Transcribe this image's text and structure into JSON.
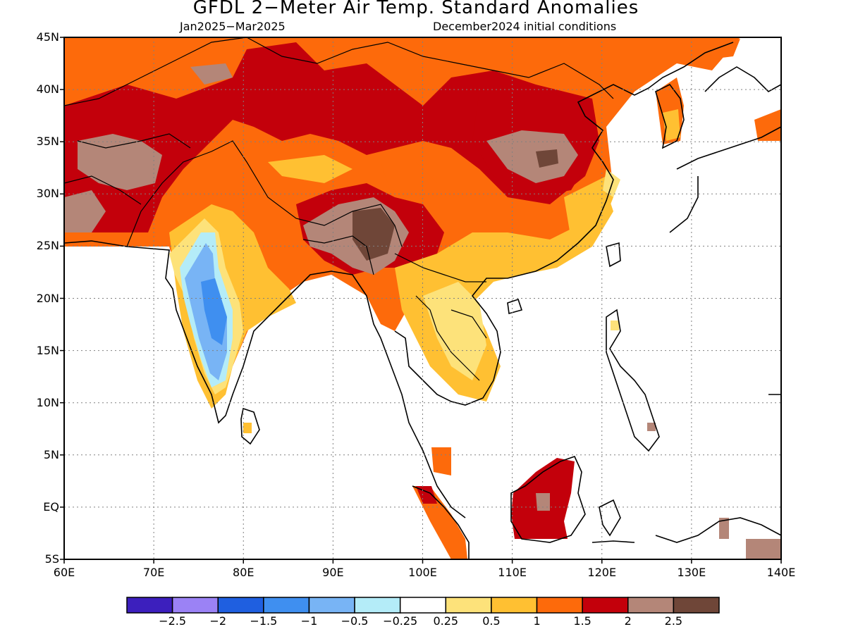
{
  "header": {
    "title": "GFDL 2−Meter Air Temp. Standard Anomalies",
    "period": "Jan2025−Mar2025",
    "init": "December2024 initial conditions"
  },
  "map": {
    "lat_labels": [
      "45N",
      "40N",
      "35N",
      "30N",
      "25N",
      "20N",
      "15N",
      "10N",
      "5N",
      "EQ",
      "5S"
    ],
    "lon_labels": [
      "60E",
      "70E",
      "80E",
      "90E",
      "100E",
      "110E",
      "120E",
      "130E",
      "140E"
    ],
    "extent": {
      "lon": [
        60,
        140
      ],
      "lat": [
        -5,
        45
      ]
    }
  },
  "colorbar": {
    "colors": [
      "#3c1fbd",
      "#9b82f5",
      "#1f5fe0",
      "#3f8ff0",
      "#78b4f5",
      "#b4ecf8",
      "#ffffff",
      "#fde27a",
      "#ffc032",
      "#fd6a0b",
      "#c3000b",
      "#b48678",
      "#6f4638"
    ],
    "labels": [
      "−2.5",
      "−2",
      "−1.5",
      "−1",
      "−0.5",
      "−0.25",
      "0.25",
      "0.5",
      "1",
      "1.5",
      "2",
      "2.5"
    ]
  }
}
